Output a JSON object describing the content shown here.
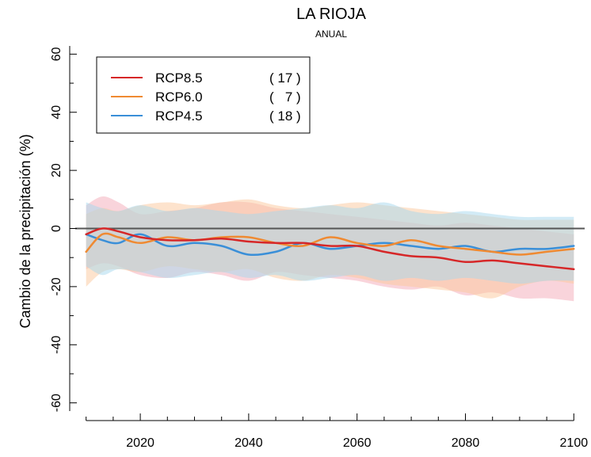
{
  "chart_data": {
    "type": "line",
    "title": "LA RIOJA",
    "subtitle": "ANUAL",
    "xlabel": "",
    "ylabel": "Cambio de la precipitación (%)",
    "xlim": [
      2008,
      2102
    ],
    "ylim": [
      -65,
      65
    ],
    "x_ticks": [
      2020,
      2040,
      2060,
      2080,
      2100
    ],
    "y_ticks": [
      -60,
      -40,
      -20,
      0,
      20,
      40,
      60
    ],
    "zero_line": true,
    "grid": false,
    "legend_position": "top-left",
    "series": [
      {
        "name": "RCP8.5",
        "count_label": "( 17 )",
        "color": "#d62728",
        "band_color": "#f4a9b8",
        "x": [
          2010,
          2013,
          2016,
          2020,
          2025,
          2030,
          2035,
          2040,
          2045,
          2050,
          2055,
          2060,
          2065,
          2070,
          2075,
          2080,
          2085,
          2090,
          2095,
          2100
        ],
        "y": [
          -2,
          0,
          -1,
          -3,
          -4,
          -4,
          -3.5,
          -4.5,
          -5,
          -5,
          -6,
          -6,
          -8,
          -9.5,
          -10,
          -11.5,
          -11,
          -12,
          -13,
          -14
        ],
        "upper": [
          8,
          11,
          9,
          5,
          6,
          7,
          9,
          9,
          7,
          6,
          5,
          4,
          3,
          2,
          1,
          2,
          1,
          0,
          -1,
          -2
        ],
        "lower": [
          -14,
          -12,
          -13,
          -16,
          -17,
          -15,
          -16,
          -18,
          -15,
          -16,
          -17,
          -18,
          -20,
          -21,
          -20,
          -23,
          -22,
          -24,
          -24,
          -25
        ]
      },
      {
        "name": "RCP6.0",
        "count_label": "(   7 )",
        "color": "#ef8a32",
        "band_color": "#fbc79b",
        "x": [
          2010,
          2013,
          2016,
          2020,
          2025,
          2030,
          2035,
          2040,
          2045,
          2050,
          2055,
          2060,
          2065,
          2070,
          2075,
          2080,
          2085,
          2090,
          2095,
          2100
        ],
        "y": [
          -8,
          -2,
          -3,
          -5,
          -3,
          -4,
          -3,
          -3,
          -5,
          -6,
          -3,
          -5,
          -6,
          -4,
          -6,
          -7,
          -8,
          -9,
          -8,
          -7
        ],
        "upper": [
          5,
          7,
          6,
          8,
          9,
          8,
          9,
          10,
          8,
          7,
          8,
          9,
          8,
          7,
          6,
          5,
          4,
          3,
          3,
          3
        ],
        "lower": [
          -20,
          -15,
          -14,
          -15,
          -13,
          -14,
          -15,
          -14,
          -17,
          -18,
          -16,
          -17,
          -19,
          -20,
          -21,
          -22,
          -24,
          -20,
          -18,
          -19
        ]
      },
      {
        "name": "RCP4.5",
        "count_label": "( 18 )",
        "color": "#3a8fd8",
        "band_color": "#a6d8ee",
        "x": [
          2010,
          2013,
          2016,
          2020,
          2025,
          2030,
          2035,
          2040,
          2045,
          2050,
          2055,
          2060,
          2065,
          2070,
          2075,
          2080,
          2085,
          2090,
          2095,
          2100
        ],
        "y": [
          -2,
          -4,
          -5,
          -2,
          -6,
          -5,
          -6,
          -9,
          -8,
          -5,
          -7,
          -6,
          -5,
          -6,
          -7,
          -6,
          -8,
          -7,
          -7,
          -6
        ],
        "upper": [
          9,
          7,
          6,
          8,
          6,
          7,
          6,
          5,
          6,
          7,
          8,
          7,
          9,
          6,
          5,
          6,
          5,
          4,
          4,
          4
        ],
        "lower": [
          -13,
          -16,
          -14,
          -15,
          -17,
          -16,
          -15,
          -17,
          -16,
          -18,
          -17,
          -16,
          -18,
          -17,
          -18,
          -17,
          -18,
          -19,
          -18,
          -18
        ]
      }
    ]
  }
}
